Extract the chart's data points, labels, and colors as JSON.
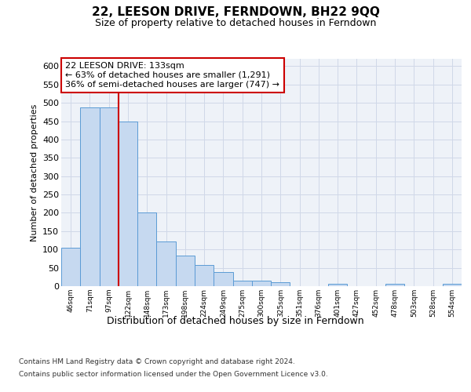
{
  "title": "22, LEESON DRIVE, FERNDOWN, BH22 9QQ",
  "subtitle": "Size of property relative to detached houses in Ferndown",
  "xlabel": "Distribution of detached houses by size in Ferndown",
  "ylabel": "Number of detached properties",
  "footer1": "Contains HM Land Registry data © Crown copyright and database right 2024.",
  "footer2": "Contains public sector information licensed under the Open Government Licence v3.0.",
  "annotation_line1": "22 LEESON DRIVE: 133sqm",
  "annotation_line2": "← 63% of detached houses are smaller (1,291)",
  "annotation_line3": "36% of semi-detached houses are larger (747) →",
  "property_size_bin_index": 2,
  "categories": [
    "46sqm",
    "71sqm",
    "97sqm",
    "122sqm",
    "148sqm",
    "173sqm",
    "198sqm",
    "224sqm",
    "249sqm",
    "275sqm",
    "300sqm",
    "325sqm",
    "351sqm",
    "376sqm",
    "401sqm",
    "427sqm",
    "452sqm",
    "478sqm",
    "503sqm",
    "528sqm",
    "554sqm"
  ],
  "values": [
    105,
    487,
    487,
    450,
    200,
    122,
    83,
    57,
    38,
    15,
    15,
    10,
    0,
    0,
    7,
    0,
    0,
    7,
    0,
    0,
    7
  ],
  "bar_color": "#c6d9f0",
  "bar_edge_color": "#5b9bd5",
  "grid_color": "#d0d8e8",
  "background_color": "#eef2f8",
  "red_line_color": "#cc0000",
  "annotation_box_color": "#ffffff",
  "annotation_border_color": "#cc0000",
  "ylim": [
    0,
    620
  ],
  "yticks": [
    0,
    50,
    100,
    150,
    200,
    250,
    300,
    350,
    400,
    450,
    500,
    550,
    600
  ],
  "title_fontsize": 11,
  "subtitle_fontsize": 9,
  "ylabel_fontsize": 8,
  "ytick_fontsize": 8,
  "xtick_fontsize": 6.5,
  "xlabel_fontsize": 9,
  "footer_fontsize": 6.5,
  "ann_fontsize": 8
}
